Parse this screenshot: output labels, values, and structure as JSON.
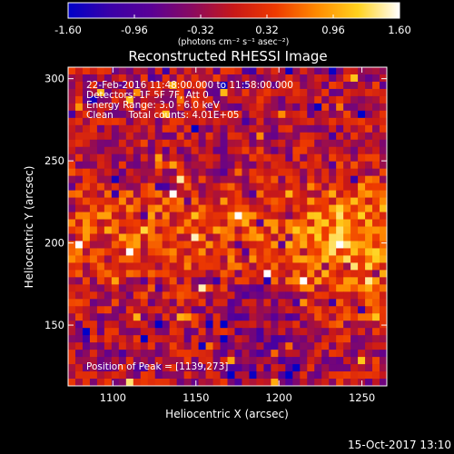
{
  "chart_data": {
    "type": "heatmap",
    "title": "Reconstructed RHESSI Image",
    "xlabel": "Heliocentric X (arcsec)",
    "ylabel": "Heliocentric Y (arcsec)",
    "xlim": [
      1073,
      1265
    ],
    "ylim": [
      113,
      307
    ],
    "xticks": [
      1100,
      1150,
      1200,
      1250
    ],
    "yticks": [
      150,
      200,
      250,
      300
    ],
    "colorbar": {
      "min": -1.6,
      "max": 1.6,
      "tick_labels": [
        "-1.60",
        "-0.96",
        "-0.32",
        "0.32",
        "0.96",
        "1.60"
      ],
      "unit_label": "(photons cm⁻² s⁻¹ asec⁻²)",
      "colors": [
        "#0000c8",
        "#3a00a8",
        "#5a0096",
        "#8a0a60",
        "#c81818",
        "#ee3a00",
        "#ff8a00",
        "#ffd21e",
        "#ffffff"
      ]
    },
    "annotations": [
      "22-Feb-2016 11:48:00.000 to 11:58:00.000",
      "Detectors: 1F 5F 7F, Att 0",
      "Energy Range: 3.0 - 6.0 keV",
      "Clean     Total counts: 4.01E+05"
    ],
    "peak_label": "Position of Peak = [1139,273]",
    "grid": false
  },
  "footer": {
    "date": "15-Oct-2017 13:10"
  }
}
